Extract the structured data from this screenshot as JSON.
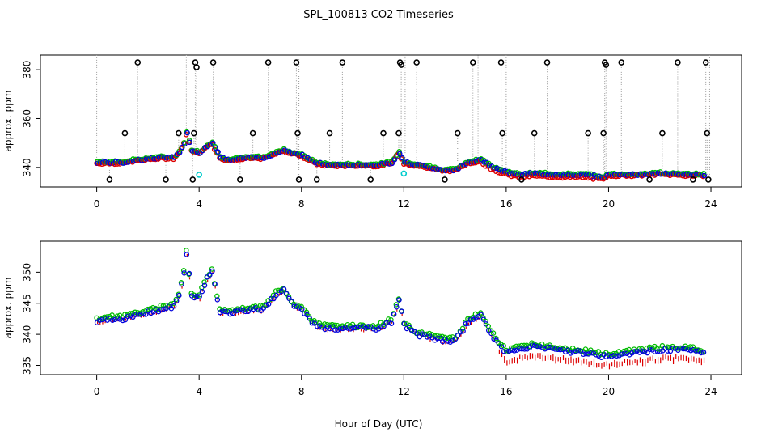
{
  "title": "SPL_100813  CO2 Timeseries",
  "xlabel": "Hour of Day (UTC)",
  "colors": {
    "black": "#000000",
    "red": "#dd0000",
    "green": "#00bb00",
    "blue": "#0000dd",
    "cyan": "#00cccc",
    "gray": "#999999"
  },
  "chart_data": [
    {
      "type": "scatter",
      "panel": "top",
      "ylabel": "approx. ppm",
      "xlim": [
        -2.2,
        25.2
      ],
      "ylim": [
        332,
        386
      ],
      "xticks": [
        0,
        4,
        8,
        12,
        16,
        20,
        24
      ],
      "yticks": [
        340,
        360,
        380
      ],
      "baseline": {
        "x": [
          0,
          0.5,
          1,
          1.5,
          2,
          2.5,
          3,
          3.2,
          3.4,
          3.5,
          3.7,
          4,
          4.3,
          4.5,
          4.8,
          5.2,
          6,
          6.5,
          7,
          7.3,
          7.6,
          8,
          8.5,
          9,
          10,
          11,
          11.5,
          11.8,
          12,
          12.5,
          13,
          13.5,
          14,
          14.5,
          15,
          15.5,
          16,
          16.5,
          17,
          18,
          19,
          19.8,
          20,
          21,
          22,
          23,
          23.8
        ],
        "y": [
          342,
          342,
          342,
          343,
          343.5,
          344,
          344,
          346,
          350,
          354,
          347,
          346,
          349,
          350,
          344,
          343,
          344,
          344,
          346,
          347,
          346,
          345,
          342,
          341,
          341,
          341,
          342,
          346,
          342,
          341,
          340,
          339,
          339,
          342,
          343,
          340,
          338,
          337,
          337.5,
          337,
          337,
          336,
          337,
          337,
          337.5,
          337,
          337
        ]
      },
      "outliers": [
        {
          "x": 0.5,
          "y": 335
        },
        {
          "x": 1.1,
          "y": 354
        },
        {
          "x": 1.6,
          "y": 383
        },
        {
          "x": 2.7,
          "y": 335
        },
        {
          "x": 3.2,
          "y": 354
        },
        {
          "x": 3.75,
          "y": 335
        },
        {
          "x": 3.8,
          "y": 354
        },
        {
          "x": 3.85,
          "y": 383
        },
        {
          "x": 3.9,
          "y": 381
        },
        {
          "x": 4.55,
          "y": 383
        },
        {
          "x": 5.6,
          "y": 335
        },
        {
          "x": 6.1,
          "y": 354
        },
        {
          "x": 6.7,
          "y": 383
        },
        {
          "x": 7.8,
          "y": 383
        },
        {
          "x": 7.85,
          "y": 354
        },
        {
          "x": 7.9,
          "y": 335
        },
        {
          "x": 8.6,
          "y": 335
        },
        {
          "x": 9.1,
          "y": 354
        },
        {
          "x": 9.6,
          "y": 383
        },
        {
          "x": 10.7,
          "y": 335
        },
        {
          "x": 11.2,
          "y": 354
        },
        {
          "x": 11.8,
          "y": 354
        },
        {
          "x": 11.85,
          "y": 383
        },
        {
          "x": 11.9,
          "y": 382
        },
        {
          "x": 12.5,
          "y": 383
        },
        {
          "x": 13.6,
          "y": 335
        },
        {
          "x": 14.1,
          "y": 354
        },
        {
          "x": 14.7,
          "y": 383
        },
        {
          "x": 15.8,
          "y": 383
        },
        {
          "x": 15.85,
          "y": 354
        },
        {
          "x": 16.6,
          "y": 335
        },
        {
          "x": 17.1,
          "y": 354
        },
        {
          "x": 17.6,
          "y": 383
        },
        {
          "x": 19.2,
          "y": 354
        },
        {
          "x": 19.8,
          "y": 354
        },
        {
          "x": 19.85,
          "y": 383
        },
        {
          "x": 19.9,
          "y": 382
        },
        {
          "x": 20.5,
          "y": 383
        },
        {
          "x": 21.6,
          "y": 335
        },
        {
          "x": 22.1,
          "y": 354
        },
        {
          "x": 22.7,
          "y": 383
        },
        {
          "x": 23.3,
          "y": 335
        },
        {
          "x": 23.8,
          "y": 383
        },
        {
          "x": 23.85,
          "y": 354
        },
        {
          "x": 23.9,
          "y": 335
        }
      ],
      "cyan_points": [
        {
          "x": 4.0,
          "y": 337
        },
        {
          "x": 12.0,
          "y": 337.5
        }
      ]
    },
    {
      "type": "scatter",
      "panel": "bottom",
      "ylabel": "approx. ppm",
      "xlim": [
        -2.2,
        25.2
      ],
      "ylim": [
        333.5,
        355
      ],
      "xticks": [
        0,
        4,
        8,
        12,
        16,
        20,
        24
      ],
      "yticks": [
        335,
        340,
        345,
        350
      ],
      "series_names": [
        "red",
        "green",
        "blue"
      ],
      "x": [
        0,
        0.5,
        1,
        1.5,
        2,
        2.5,
        3,
        3.2,
        3.4,
        3.5,
        3.7,
        4,
        4.3,
        4.5,
        4.8,
        5.2,
        6,
        6.5,
        7,
        7.3,
        7.6,
        8,
        8.5,
        9,
        10,
        11,
        11.5,
        11.8,
        12,
        12.5,
        13,
        13.5,
        14,
        14.5,
        15,
        15.5,
        16,
        16.5,
        17,
        18,
        19,
        19.8,
        20,
        21,
        22,
        23,
        23.8
      ],
      "y": [
        342,
        342.5,
        342.5,
        343,
        343.5,
        344,
        344.5,
        346,
        350,
        353,
        346,
        346,
        349,
        350,
        343.5,
        343.5,
        344,
        344,
        346.5,
        347,
        345,
        344,
        341.5,
        341,
        341,
        341,
        342,
        345.5,
        341.5,
        340,
        339.5,
        339,
        339,
        342,
        343,
        339.5,
        337,
        337.5,
        338,
        337.5,
        337,
        336.5,
        336.5,
        337,
        337.5,
        337.5,
        337
      ]
    }
  ]
}
